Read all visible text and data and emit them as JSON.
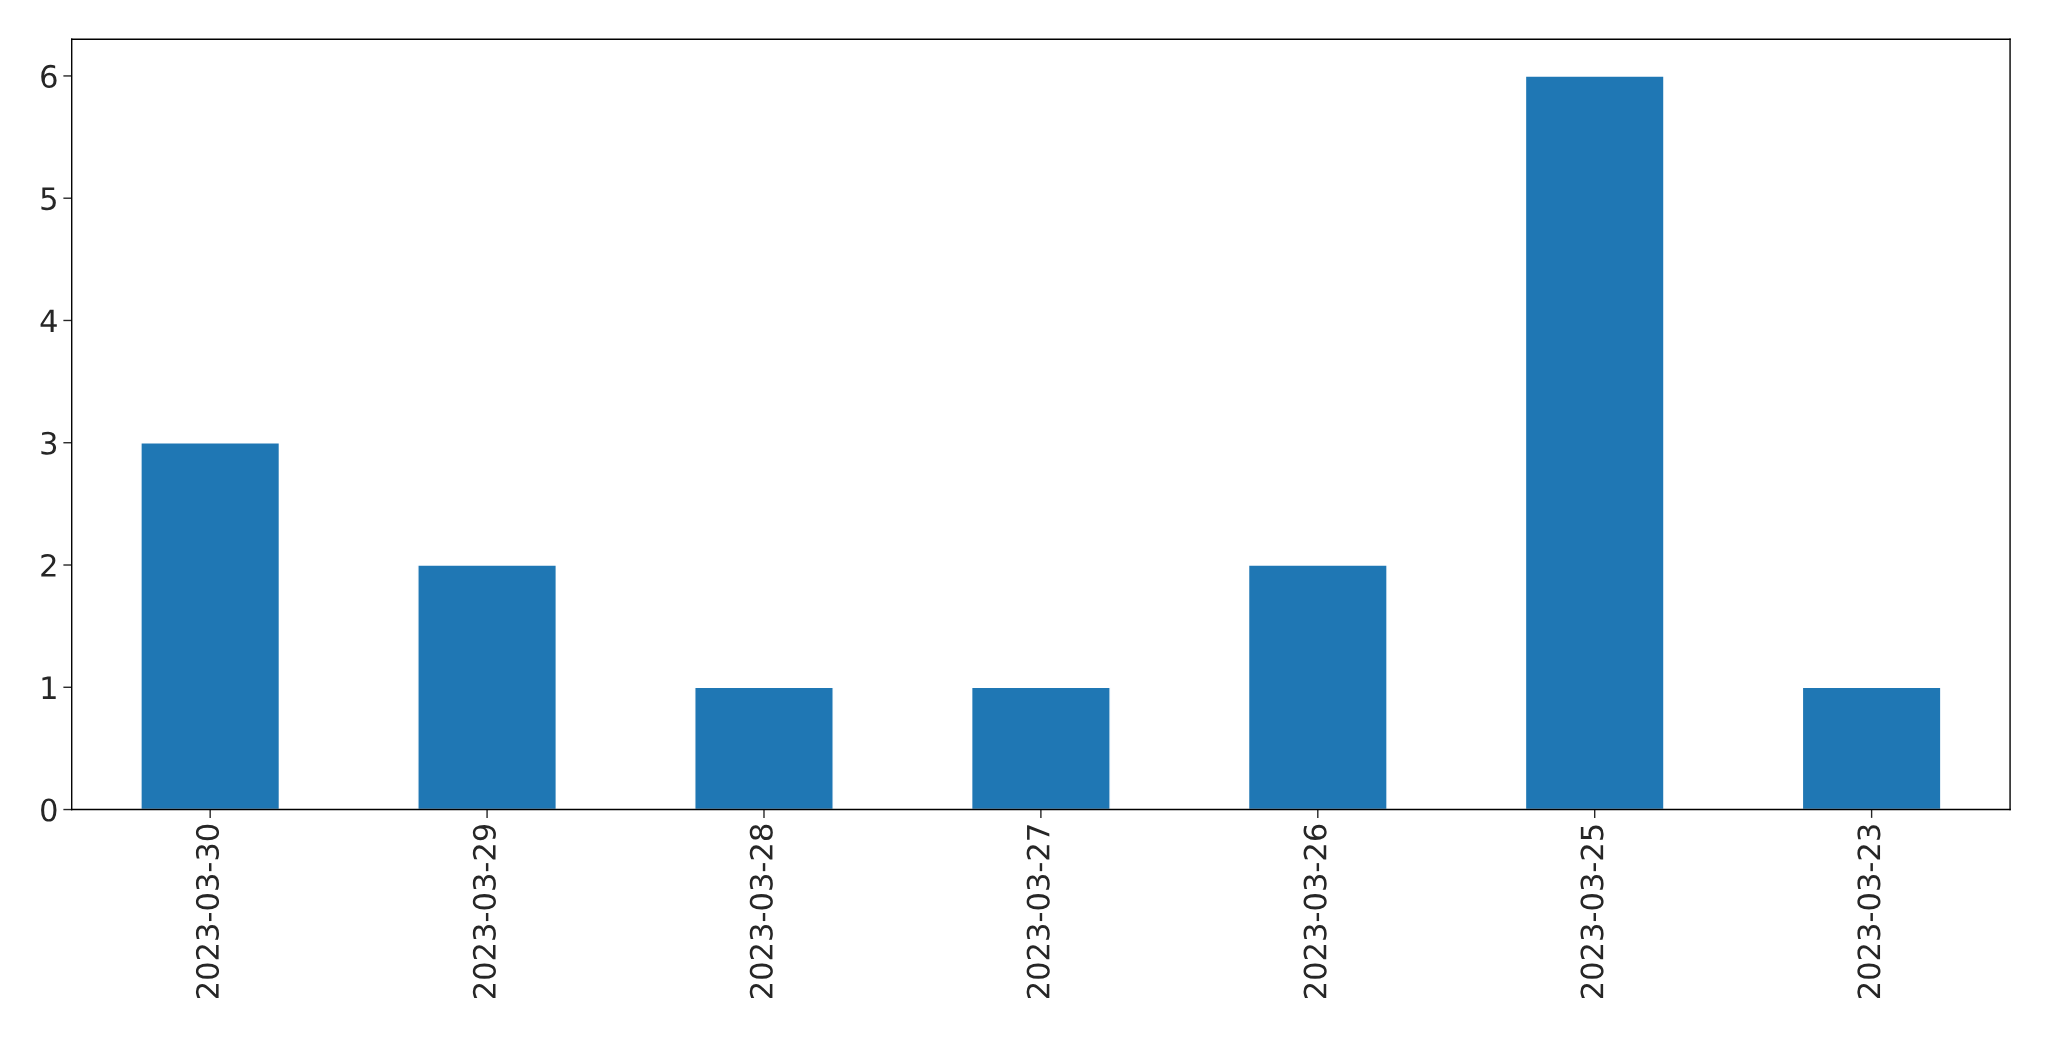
{
  "chart_data": {
    "type": "bar",
    "categories": [
      "2023-03-30",
      "2023-03-29",
      "2023-03-28",
      "2023-03-27",
      "2023-03-26",
      "2023-03-25",
      "2023-03-23"
    ],
    "values": [
      3,
      2,
      1,
      1,
      2,
      6,
      1
    ],
    "color": "#1f77b4",
    "ylim": [
      0,
      6.3
    ],
    "yticks": [
      0,
      1,
      2,
      3,
      4,
      5,
      6
    ],
    "grid": false,
    "legend": false
  }
}
